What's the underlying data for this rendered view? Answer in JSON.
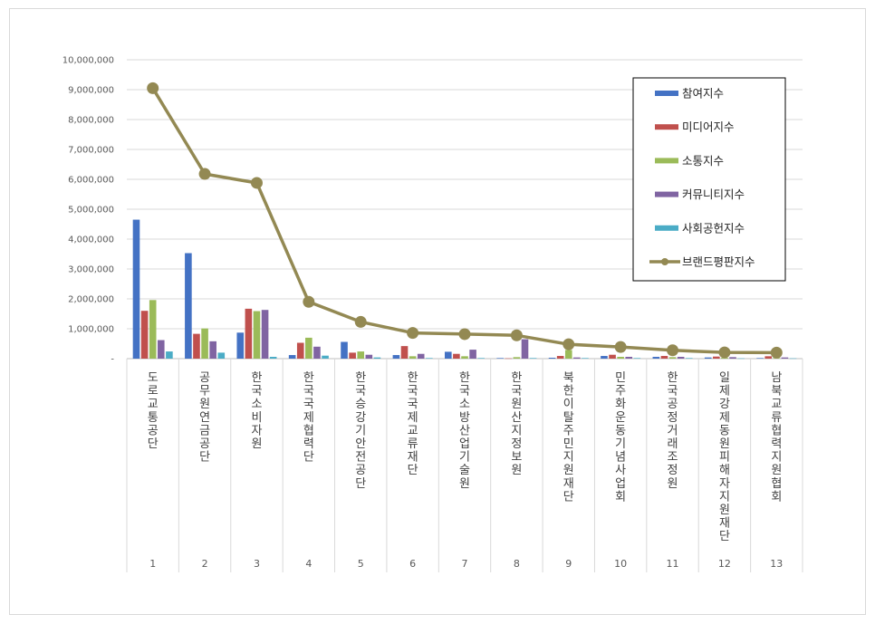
{
  "chart_data": {
    "type": "bar",
    "title": "",
    "xlabel": "",
    "ylabel": "",
    "ylim": [
      0,
      10000000
    ],
    "y_ticks": [
      "-",
      "1,000,000",
      "2,000,000",
      "3,000,000",
      "4,000,000",
      "5,000,000",
      "6,000,000",
      "7,000,000",
      "8,000,000",
      "9,000,000",
      "10,000,000"
    ],
    "grid": true,
    "legend_position": "top-right",
    "categories": [
      "도로교통공단",
      "공무원연금공단",
      "한국소비자원",
      "한국국제협력단",
      "한국승강기안전공단",
      "한국국제교류재단",
      "한국소방산업기술원",
      "한국원산지정보원",
      "북한이탈주민지원재단",
      "민주화운동기념사업회",
      "한국공정거래조정원",
      "일제강제동원피해자지원재단",
      "남북교류협력지원협회"
    ],
    "ranks": [
      "1",
      "2",
      "3",
      "4",
      "5",
      "6",
      "7",
      "8",
      "9",
      "10",
      "11",
      "12",
      "13"
    ],
    "series": [
      {
        "name": "참여지수",
        "kind": "bar",
        "color": "#4472c4",
        "values": [
          4650000,
          3530000,
          870000,
          120000,
          560000,
          120000,
          230000,
          20000,
          30000,
          90000,
          60000,
          40000,
          20000
        ]
      },
      {
        "name": "미디어지수",
        "kind": "bar",
        "color": "#c0504d",
        "values": [
          1600000,
          830000,
          1670000,
          530000,
          200000,
          420000,
          160000,
          10000,
          90000,
          130000,
          90000,
          70000,
          80000
        ]
      },
      {
        "name": "소통지수",
        "kind": "bar",
        "color": "#9bbb59",
        "values": [
          1960000,
          1010000,
          1590000,
          700000,
          240000,
          80000,
          80000,
          50000,
          290000,
          60000,
          50000,
          30000,
          20000
        ]
      },
      {
        "name": "커뮤니티지수",
        "kind": "bar",
        "color": "#8064a2",
        "values": [
          620000,
          580000,
          1630000,
          400000,
          130000,
          160000,
          300000,
          650000,
          40000,
          60000,
          60000,
          50000,
          40000
        ]
      },
      {
        "name": "사회공헌지수",
        "kind": "bar",
        "color": "#4bacc6",
        "values": [
          240000,
          200000,
          60000,
          100000,
          40000,
          20000,
          20000,
          20000,
          20000,
          20000,
          20000,
          10000,
          10000
        ]
      },
      {
        "name": "브랜드평판지수",
        "kind": "line",
        "color": "#938953",
        "values": [
          9050000,
          6180000,
          5880000,
          1900000,
          1230000,
          860000,
          820000,
          780000,
          480000,
          390000,
          280000,
          210000,
          200000
        ]
      }
    ]
  }
}
